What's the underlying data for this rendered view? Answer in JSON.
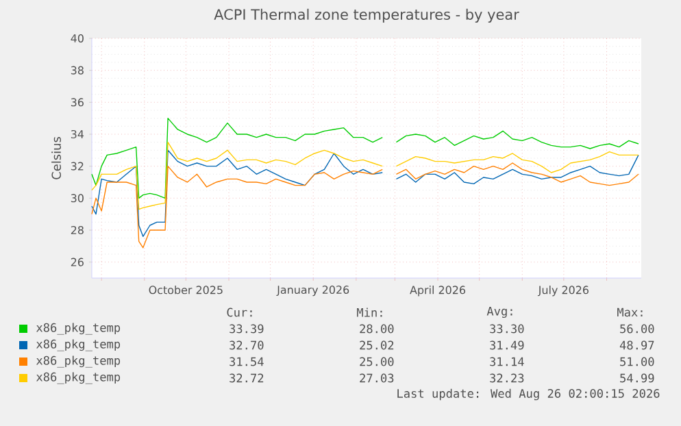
{
  "chart_data": {
    "type": "line",
    "title": "ACPI Thermal zone temperatures - by year",
    "ylabel": "Celsius",
    "x": [
      "2025-07-25",
      "2025-07-28",
      "2025-08-01",
      "2025-08-05",
      "2025-08-12",
      "2025-08-19",
      "2025-08-26",
      "2025-08-28",
      "2025-08-31",
      "2025-09-05",
      "2025-09-10",
      "2025-09-16",
      "2025-09-18",
      "2025-09-25",
      "2025-10-02",
      "2025-10-09",
      "2025-10-16",
      "2025-10-23",
      "2025-10-31",
      "2025-11-07",
      "2025-11-14",
      "2025-11-21",
      "2025-11-28",
      "2025-12-05",
      "2025-12-12",
      "2025-12-19",
      "2025-12-26",
      "2026-01-02",
      "2026-01-09",
      "2026-01-16",
      "2026-01-23",
      "2026-01-30",
      "2026-02-06",
      "2026-02-13",
      "2026-02-20",
      "2026-02-25",
      "2026-03-02",
      "2026-03-09",
      "2026-03-16",
      "2026-03-23",
      "2026-03-30",
      "2026-04-06",
      "2026-04-13",
      "2026-04-20",
      "2026-04-27",
      "2026-05-04",
      "2026-05-11",
      "2026-05-18",
      "2026-05-25",
      "2026-06-01",
      "2026-06-08",
      "2026-06-15",
      "2026-06-22",
      "2026-06-29",
      "2026-07-06",
      "2026-07-13",
      "2026-07-20",
      "2026-07-27",
      "2026-08-03",
      "2026-08-10",
      "2026-08-17",
      "2026-08-24"
    ],
    "series": [
      {
        "name": "x86_pkg_temp",
        "color": "#00cc00",
        "values": [
          31.5,
          30.8,
          32,
          32.7,
          32.8,
          33,
          33.2,
          30,
          30.2,
          30.3,
          30.2,
          30.0,
          35,
          34.3,
          34,
          33.8,
          33.5,
          33.8,
          34.7,
          34,
          34,
          33.8,
          34,
          33.8,
          33.8,
          33.6,
          34,
          34,
          34.2,
          34.3,
          34.4,
          33.8,
          33.8,
          33.5,
          33.8,
          null,
          33.5,
          33.9,
          34,
          33.9,
          33.5,
          33.8,
          33.3,
          33.6,
          33.9,
          33.7,
          33.8,
          34.2,
          33.7,
          33.6,
          33.8,
          33.5,
          33.3,
          33.2,
          33.2,
          33.3,
          33.1,
          33.3,
          33.4,
          33.2,
          33.6,
          33.4
        ]
      },
      {
        "name": "x86_pkg_temp",
        "color": "#0066b3",
        "values": [
          29.5,
          29,
          31.2,
          31.1,
          31,
          31.5,
          32,
          28.3,
          27.6,
          28.3,
          28.5,
          28.5,
          33,
          32.3,
          32,
          32.2,
          32,
          32,
          32.5,
          31.8,
          32,
          31.5,
          31.8,
          31.5,
          31.2,
          31,
          30.8,
          31.5,
          31.8,
          32.8,
          32,
          31.5,
          31.8,
          31.5,
          31.6,
          null,
          31.2,
          31.5,
          31.0,
          31.5,
          31.5,
          31.2,
          31.6,
          31,
          30.9,
          31.3,
          31.2,
          31.5,
          31.8,
          31.5,
          31.4,
          31.2,
          31.3,
          31.3,
          31.6,
          31.8,
          32,
          31.6,
          31.5,
          31.4,
          31.5,
          32.7
        ]
      },
      {
        "name": "x86_pkg_temp",
        "color": "#ff8000",
        "values": [
          29,
          30,
          29.2,
          31,
          31,
          31,
          30.8,
          27.3,
          26.9,
          28,
          28,
          28,
          32,
          31.3,
          31,
          31.5,
          30.7,
          31,
          31.2,
          31.2,
          31,
          31,
          30.9,
          31.2,
          31,
          30.8,
          30.8,
          31.5,
          31.6,
          31.2,
          31.5,
          31.7,
          31.6,
          31.5,
          31.8,
          null,
          31.5,
          31.8,
          31.2,
          31.5,
          31.7,
          31.5,
          31.8,
          31.6,
          32,
          31.8,
          32,
          31.8,
          32.2,
          31.8,
          31.6,
          31.5,
          31.3,
          31.0,
          31.2,
          31.4,
          31,
          30.9,
          30.8,
          30.9,
          31,
          31.5
        ]
      },
      {
        "name": "x86_pkg_temp",
        "color": "#ffcc00",
        "values": [
          30.5,
          30.8,
          31.5,
          31.5,
          31.5,
          31.8,
          32,
          29.3,
          29.4,
          29.5,
          29.6,
          29.7,
          33.5,
          32.5,
          32.3,
          32.5,
          32.3,
          32.5,
          33,
          32.3,
          32.4,
          32.4,
          32.2,
          32.4,
          32.3,
          32.1,
          32.5,
          32.8,
          33,
          32.8,
          32.5,
          32.3,
          32.4,
          32.2,
          32.0,
          null,
          32.0,
          32.3,
          32.6,
          32.5,
          32.3,
          32.3,
          32.2,
          32.3,
          32.4,
          32.4,
          32.6,
          32.5,
          32.8,
          32.4,
          32.3,
          32,
          31.6,
          31.8,
          32.2,
          32.3,
          32.4,
          32.6,
          32.9,
          32.7,
          32.7,
          32.7
        ]
      }
    ],
    "xlim": [
      "2025-07-25",
      "2026-08-26"
    ],
    "xticks": [
      {
        "value": "2025-08-01",
        "label": null
      },
      {
        "value": "2025-09-01",
        "label": null
      },
      {
        "value": "2025-10-01",
        "label": "October 2025"
      },
      {
        "value": "2025-11-01",
        "label": null
      },
      {
        "value": "2025-12-01",
        "label": null
      },
      {
        "value": "2026-01-01",
        "label": "January 2026"
      },
      {
        "value": "2026-02-01",
        "label": null
      },
      {
        "value": "2026-03-01",
        "label": null
      },
      {
        "value": "2026-04-01",
        "label": "April 2026"
      },
      {
        "value": "2026-05-01",
        "label": null
      },
      {
        "value": "2026-06-01",
        "label": null
      },
      {
        "value": "2026-07-01",
        "label": "July 2026"
      },
      {
        "value": "2026-08-01",
        "label": null
      }
    ],
    "ylim": [
      25,
      40
    ],
    "yticks": [
      26,
      28,
      30,
      32,
      34,
      36,
      38,
      40
    ],
    "grid": true,
    "legend": "bottom",
    "line_style": "solid",
    "annotations": [
      "Cur:",
      "Min:",
      "Avg:",
      "Max:",
      "33.39",
      "28.00",
      "33.30",
      "56.00",
      "32.70",
      "25.02",
      "31.49",
      "48.97",
      "31.54",
      "25.00",
      "31.14",
      "51.00",
      "32.72",
      "27.03",
      "32.23",
      "54.99",
      "Last update: Wed Aug 26 02:00:15 2026"
    ]
  }
}
